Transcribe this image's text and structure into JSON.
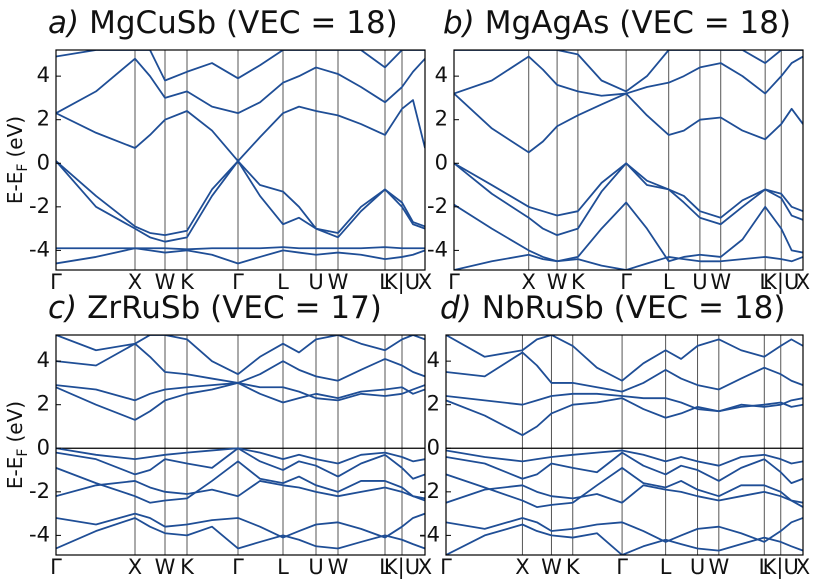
{
  "chart_data": [
    {
      "type": "line",
      "label": "a)",
      "title": "MgCuSb (VEC = 18)",
      "ylabel": {
        "main": "E-E",
        "sub": "F",
        "unit": "(eV)"
      },
      "color": "#1f4e96",
      "xlim": [
        0,
        36.9
      ],
      "ylim": [
        -4.9,
        5.2
      ],
      "xticks": [
        {
          "value": 0,
          "label": "Γ"
        },
        {
          "value": 7.9,
          "label": "X"
        },
        {
          "value": 10.9,
          "label": "W"
        },
        {
          "value": 13.1,
          "label": "K"
        },
        {
          "value": 18.2,
          "label": "Γ"
        },
        {
          "value": 22.7,
          "label": "L"
        },
        {
          "value": 26.0,
          "label": "U"
        },
        {
          "value": 28.2,
          "label": "W"
        },
        {
          "value": 32.9,
          "label": "L"
        },
        {
          "value": 34.6,
          "label": "K|U"
        },
        {
          "value": 36.9,
          "label": "X"
        }
      ],
      "yticks": [
        -4,
        -2,
        0,
        2,
        4
      ],
      "zero_line": false,
      "x": [
        0,
        4,
        7.9,
        9.4,
        10.9,
        13.1,
        15.6,
        18.2,
        20.4,
        22.7,
        24.3,
        26.0,
        28.2,
        30.5,
        32.9,
        34.6,
        35.7,
        36.9
      ],
      "series": [
        {
          "values": [
            -4.6,
            -4.3,
            -3.9,
            -4.0,
            -4.1,
            -4.0,
            -4.2,
            -4.6,
            -4.3,
            -4.0,
            -4.1,
            -4.2,
            -4.1,
            -4.2,
            -4.4,
            -4.3,
            -4.2,
            -4.0
          ]
        },
        {
          "values": [
            -3.9,
            -3.9,
            -3.9,
            -3.9,
            -3.9,
            -3.95,
            -3.9,
            -3.9,
            -3.9,
            -3.85,
            -3.9,
            -3.9,
            -3.9,
            -3.9,
            -3.85,
            -3.9,
            -3.9,
            -3.9
          ]
        },
        {
          "values": [
            0.1,
            -2.0,
            -3.0,
            -3.4,
            -3.6,
            -3.4,
            -1.5,
            0.1,
            -1.5,
            -2.8,
            -2.5,
            -3.0,
            -3.4,
            -2.2,
            -1.2,
            -2.0,
            -2.8,
            -3.0
          ]
        },
        {
          "values": [
            0.1,
            -1.5,
            -2.9,
            -3.2,
            -3.3,
            -3.1,
            -1.2,
            0.1,
            -1.0,
            -1.3,
            -2.0,
            -3.0,
            -3.2,
            -2.0,
            -1.2,
            -1.8,
            -2.7,
            -2.9
          ]
        },
        {
          "values": [
            2.3,
            1.4,
            0.7,
            1.3,
            2.0,
            2.4,
            1.5,
            0.1,
            1.2,
            2.3,
            2.6,
            2.4,
            2.2,
            1.8,
            1.3,
            2.5,
            2.9,
            0.7
          ]
        },
        {
          "values": [
            2.3,
            3.3,
            4.8,
            4.0,
            3.0,
            3.3,
            2.6,
            2.3,
            2.8,
            3.7,
            4.0,
            4.4,
            4.1,
            3.5,
            2.8,
            3.5,
            4.2,
            4.8
          ]
        },
        {
          "values": [
            4.9,
            5.2,
            5.2,
            5.2,
            3.8,
            4.2,
            4.6,
            3.9,
            4.5,
            5.2,
            5.2,
            5.2,
            5.2,
            5.2,
            4.4,
            5.2,
            5.2,
            5.2
          ]
        }
      ]
    },
    {
      "type": "line",
      "label": "b)",
      "title": "MgAgAs (VEC = 18)",
      "color": "#1f4e96",
      "xlim": [
        0,
        36.9
      ],
      "ylim": [
        -4.9,
        5.2
      ],
      "xticks": [
        {
          "value": 0,
          "label": "Γ"
        },
        {
          "value": 7.9,
          "label": "X"
        },
        {
          "value": 10.9,
          "label": "W"
        },
        {
          "value": 13.1,
          "label": "K"
        },
        {
          "value": 18.2,
          "label": "Γ"
        },
        {
          "value": 22.7,
          "label": "L"
        },
        {
          "value": 26.0,
          "label": "U"
        },
        {
          "value": 28.2,
          "label": "W"
        },
        {
          "value": 32.9,
          "label": "L"
        },
        {
          "value": 34.6,
          "label": "K|U"
        },
        {
          "value": 36.9,
          "label": "X"
        }
      ],
      "yticks": [
        -4,
        -2,
        0,
        2,
        4
      ],
      "zero_line": false,
      "x": [
        0,
        4,
        7.9,
        9.4,
        10.9,
        13.1,
        15.6,
        18.2,
        20.4,
        22.7,
        24.3,
        26.0,
        28.2,
        30.5,
        32.9,
        34.6,
        35.7,
        36.9
      ],
      "series": [
        {
          "values": [
            -4.9,
            -4.5,
            -4.2,
            -4.4,
            -4.5,
            -4.4,
            -4.7,
            -4.9,
            -4.6,
            -4.3,
            -4.4,
            -4.5,
            -4.5,
            -4.4,
            -4.3,
            -4.4,
            -4.5,
            -4.3
          ]
        },
        {
          "values": [
            -1.9,
            -3.0,
            -4.0,
            -4.3,
            -4.5,
            -4.3,
            -3.0,
            -1.8,
            -3.0,
            -4.5,
            -4.3,
            -4.2,
            -4.3,
            -3.5,
            -2.0,
            -3.0,
            -4.0,
            -4.1
          ]
        },
        {
          "values": [
            0,
            -1.4,
            -2.5,
            -3.0,
            -3.3,
            -3.0,
            -1.3,
            0,
            -1.0,
            -1.2,
            -1.8,
            -2.5,
            -2.8,
            -2.0,
            -1.2,
            -1.6,
            -2.4,
            -2.6
          ]
        },
        {
          "values": [
            0,
            -1.0,
            -2.0,
            -2.2,
            -2.4,
            -2.2,
            -0.9,
            0,
            -0.8,
            -1.2,
            -1.5,
            -2.2,
            -2.5,
            -1.7,
            -1.2,
            -1.4,
            -2.0,
            -2.2
          ]
        },
        {
          "values": [
            3.2,
            1.6,
            0.5,
            1.0,
            1.7,
            2.2,
            2.7,
            3.2,
            2.2,
            1.3,
            1.5,
            2.0,
            2.1,
            1.5,
            1.1,
            1.8,
            2.5,
            1.8
          ]
        },
        {
          "values": [
            3.2,
            3.8,
            4.9,
            4.3,
            3.6,
            3.3,
            3.1,
            3.2,
            3.5,
            3.7,
            4.0,
            4.4,
            4.6,
            4.0,
            3.2,
            4.0,
            4.6,
            4.9
          ]
        },
        {
          "values": [
            5.2,
            5.2,
            5.2,
            5.2,
            5.2,
            5.0,
            3.8,
            3.3,
            4.0,
            5.2,
            5.2,
            5.2,
            5.2,
            5.2,
            4.6,
            5.2,
            5.2,
            5.2
          ]
        }
      ]
    },
    {
      "type": "line",
      "label": "c)",
      "title": "ZrRuSb (VEC = 17)",
      "ylabel": {
        "main": "E-E",
        "sub": "F",
        "unit": "(eV)"
      },
      "color": "#1f4e96",
      "xlim": [
        0,
        36.9
      ],
      "ylim": [
        -4.9,
        5.2
      ],
      "xticks": [
        {
          "value": 0,
          "label": "Γ"
        },
        {
          "value": 7.9,
          "label": "X"
        },
        {
          "value": 10.9,
          "label": "W"
        },
        {
          "value": 13.1,
          "label": "K"
        },
        {
          "value": 18.2,
          "label": "Γ"
        },
        {
          "value": 22.7,
          "label": "L"
        },
        {
          "value": 26.0,
          "label": "U"
        },
        {
          "value": 28.2,
          "label": "W"
        },
        {
          "value": 32.9,
          "label": "L"
        },
        {
          "value": 34.6,
          "label": "K|U"
        },
        {
          "value": 36.9,
          "label": "X"
        }
      ],
      "yticks": [
        -4,
        -2,
        0,
        2,
        4
      ],
      "zero_line": true,
      "x": [
        0,
        4,
        7.9,
        9.4,
        10.9,
        13.1,
        15.6,
        18.2,
        20.4,
        22.7,
        24.3,
        26.0,
        28.2,
        30.5,
        32.9,
        34.6,
        35.7,
        36.9
      ],
      "series": [
        {
          "values": [
            -4.6,
            -3.8,
            -3.2,
            -3.6,
            -3.9,
            -4.0,
            -3.6,
            -4.6,
            -4.3,
            -4.0,
            -4.2,
            -4.5,
            -4.6,
            -4.3,
            -4.0,
            -4.2,
            -4.4,
            -4.6
          ]
        },
        {
          "values": [
            -3.2,
            -3.5,
            -3.0,
            -3.2,
            -3.6,
            -3.5,
            -3.3,
            -3.2,
            -3.6,
            -4.1,
            -3.8,
            -3.5,
            -3.4,
            -3.7,
            -4.1,
            -3.6,
            -3.2,
            -3.0
          ]
        },
        {
          "values": [
            -2.2,
            -1.7,
            -1.5,
            -1.8,
            -2.0,
            -2.1,
            -1.9,
            -2.2,
            -1.5,
            -1.7,
            -1.8,
            -2.0,
            -2.2,
            -2.0,
            -1.8,
            -2.0,
            -2.2,
            -2.4
          ]
        },
        {
          "values": [
            -0.9,
            -1.6,
            -2.2,
            -2.5,
            -2.4,
            -2.3,
            -1.5,
            -0.6,
            -1.4,
            -1.6,
            -1.3,
            -1.7,
            -2.0,
            -1.5,
            -1.5,
            -1.8,
            -2.2,
            -2.3
          ]
        },
        {
          "values": [
            -0.2,
            -0.5,
            -1.2,
            -1.0,
            -0.5,
            -0.7,
            -0.9,
            0,
            -0.6,
            -1.0,
            -0.6,
            -0.8,
            -1.3,
            -0.7,
            -0.3,
            -0.9,
            -1.4,
            -1.2
          ]
        },
        {
          "values": [
            0,
            -0.3,
            -0.5,
            -0.4,
            -0.3,
            -0.2,
            -0.1,
            0,
            -0.2,
            -0.5,
            -0.3,
            -0.5,
            -0.7,
            -0.3,
            -0.2,
            -0.4,
            -0.6,
            -0.5
          ]
        },
        {
          "values": [
            2.8,
            2.0,
            1.3,
            1.7,
            2.2,
            2.5,
            2.7,
            3.0,
            2.5,
            2.1,
            2.3,
            2.5,
            2.3,
            2.6,
            2.7,
            2.8,
            2.5,
            2.7
          ]
        },
        {
          "values": [
            2.9,
            2.7,
            2.2,
            2.5,
            2.7,
            2.8,
            2.9,
            3.0,
            2.8,
            2.8,
            2.6,
            2.3,
            2.2,
            2.5,
            2.4,
            2.5,
            2.7,
            2.9
          ]
        },
        {
          "values": [
            4.0,
            3.8,
            4.8,
            4.2,
            3.5,
            3.4,
            3.2,
            3.0,
            3.4,
            4.0,
            3.6,
            3.3,
            3.1,
            3.6,
            4.1,
            3.8,
            3.5,
            3.3
          ]
        },
        {
          "values": [
            5.2,
            4.5,
            4.8,
            5.2,
            5.2,
            5.0,
            4.0,
            3.4,
            4.2,
            4.8,
            4.4,
            5.0,
            5.2,
            4.8,
            4.5,
            5.0,
            5.2,
            5.0
          ]
        }
      ]
    },
    {
      "type": "line",
      "label": "d)",
      "title": "NbRuSb (VEC = 18)",
      "color": "#1f4e96",
      "xlim": [
        0,
        36.9
      ],
      "ylim": [
        -4.9,
        5.2
      ],
      "xticks": [
        {
          "value": 0,
          "label": "Γ"
        },
        {
          "value": 7.9,
          "label": "X"
        },
        {
          "value": 10.9,
          "label": "W"
        },
        {
          "value": 13.1,
          "label": "K"
        },
        {
          "value": 18.2,
          "label": "Γ"
        },
        {
          "value": 22.7,
          "label": "L"
        },
        {
          "value": 26.0,
          "label": "U"
        },
        {
          "value": 28.2,
          "label": "W"
        },
        {
          "value": 32.9,
          "label": "L"
        },
        {
          "value": 34.6,
          "label": "K|U"
        },
        {
          "value": 36.9,
          "label": "X"
        }
      ],
      "yticks": [
        -4,
        -2,
        0,
        2,
        4
      ],
      "zero_line": true,
      "x": [
        0,
        4,
        7.9,
        9.4,
        10.9,
        13.1,
        15.6,
        18.2,
        20.4,
        22.7,
        24.3,
        26.0,
        28.2,
        30.5,
        32.9,
        34.6,
        35.7,
        36.9
      ],
      "series": [
        {
          "values": [
            -4.9,
            -4.0,
            -3.5,
            -3.8,
            -4.0,
            -4.1,
            -3.9,
            -4.9,
            -4.5,
            -4.2,
            -4.4,
            -4.6,
            -4.7,
            -4.4,
            -4.1,
            -4.3,
            -4.5,
            -4.7
          ]
        },
        {
          "values": [
            -3.4,
            -3.7,
            -3.2,
            -3.4,
            -3.8,
            -3.7,
            -3.5,
            -3.4,
            -3.8,
            -4.3,
            -4.0,
            -3.7,
            -3.6,
            -3.9,
            -4.3,
            -3.8,
            -3.4,
            -3.2
          ]
        },
        {
          "values": [
            -2.5,
            -1.9,
            -1.7,
            -2.0,
            -2.2,
            -2.3,
            -2.1,
            -2.5,
            -1.7,
            -1.9,
            -2.0,
            -2.2,
            -2.4,
            -2.2,
            -2.0,
            -2.2,
            -2.4,
            -2.7
          ]
        },
        {
          "values": [
            -1.2,
            -1.8,
            -2.4,
            -2.7,
            -2.6,
            -2.5,
            -1.7,
            -0.9,
            -1.6,
            -1.8,
            -1.5,
            -1.9,
            -2.2,
            -1.7,
            -1.7,
            -2.0,
            -2.4,
            -2.5
          ]
        },
        {
          "values": [
            -0.4,
            -0.7,
            -1.4,
            -1.2,
            -0.7,
            -0.9,
            -1.1,
            -0.2,
            -0.8,
            -1.2,
            -0.8,
            -1.0,
            -1.5,
            -0.9,
            -0.5,
            -1.1,
            -1.6,
            -1.4
          ]
        },
        {
          "values": [
            -0.1,
            -0.4,
            -0.6,
            -0.5,
            -0.4,
            -0.3,
            -0.2,
            -0.1,
            -0.3,
            -0.6,
            -0.4,
            -0.6,
            -0.8,
            -0.4,
            -0.3,
            -0.5,
            -0.7,
            -0.6
          ]
        },
        {
          "values": [
            2.2,
            1.5,
            0.6,
            1.0,
            1.6,
            2.0,
            2.1,
            2.3,
            1.8,
            1.4,
            1.6,
            1.9,
            1.7,
            1.9,
            2.0,
            2.1,
            1.9,
            2.0
          ]
        },
        {
          "values": [
            2.4,
            2.2,
            2.0,
            2.2,
            2.4,
            2.5,
            2.5,
            2.4,
            2.3,
            2.3,
            2.1,
            1.8,
            1.7,
            2.0,
            1.9,
            2.0,
            2.2,
            2.3
          ]
        },
        {
          "values": [
            3.5,
            3.3,
            4.4,
            3.8,
            3.0,
            3.0,
            2.8,
            2.6,
            3.0,
            3.6,
            3.2,
            2.9,
            2.7,
            3.2,
            3.7,
            3.4,
            3.1,
            2.9
          ]
        },
        {
          "values": [
            5.2,
            4.2,
            4.5,
            5.0,
            5.2,
            4.7,
            3.7,
            3.1,
            3.9,
            4.5,
            4.1,
            4.7,
            5.0,
            4.5,
            4.2,
            4.7,
            5.0,
            4.7
          ]
        }
      ]
    }
  ]
}
